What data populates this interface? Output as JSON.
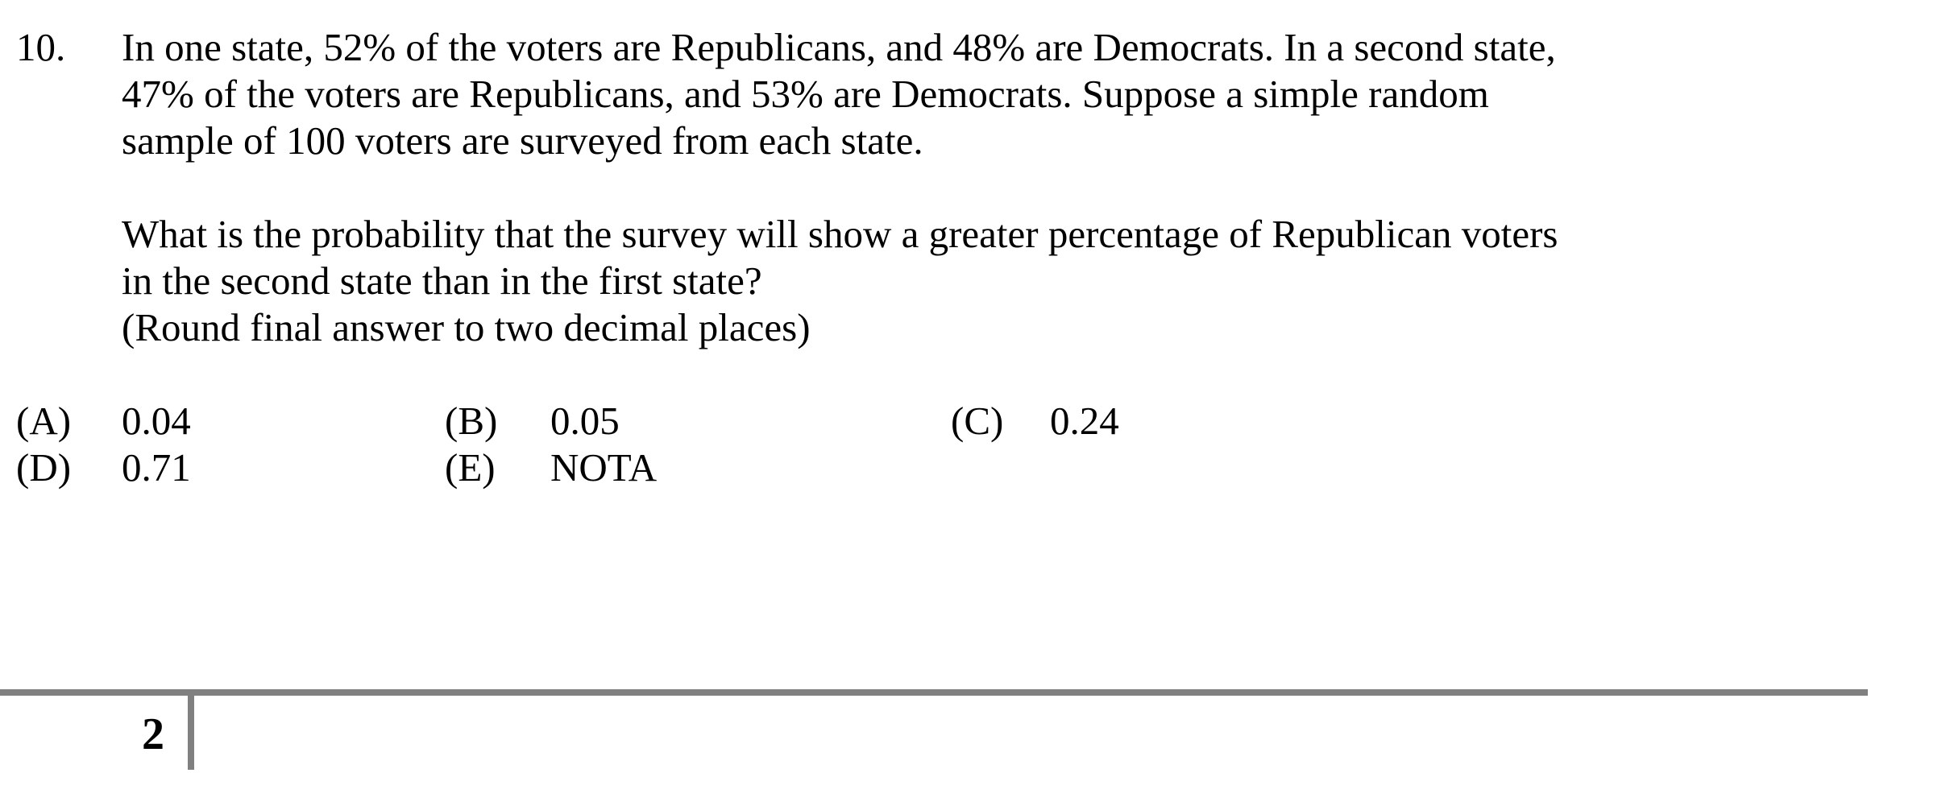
{
  "question": {
    "number": "10.",
    "paragraph1": [
      "In one state, 52% of the voters are Republicans, and 48% are Democrats. In a second state,",
      "47% of the voters are Republicans, and 53% are Democrats. Suppose a simple random",
      "sample of 100 voters are surveyed from each state."
    ],
    "paragraph2": [
      "What is the probability that the survey will show a greater percentage of Republican voters",
      "in the second state than in the first state?",
      "(Round final answer to two decimal places)"
    ],
    "choices": [
      {
        "letter": "(A)",
        "value": "0.04"
      },
      {
        "letter": "(B)",
        "value": "0.05"
      },
      {
        "letter": "(C)",
        "value": "0.24"
      },
      {
        "letter": "(D)",
        "value": "0.71"
      },
      {
        "letter": "(E)",
        "value": "NOTA"
      }
    ]
  },
  "footer": {
    "page_number": "2"
  }
}
